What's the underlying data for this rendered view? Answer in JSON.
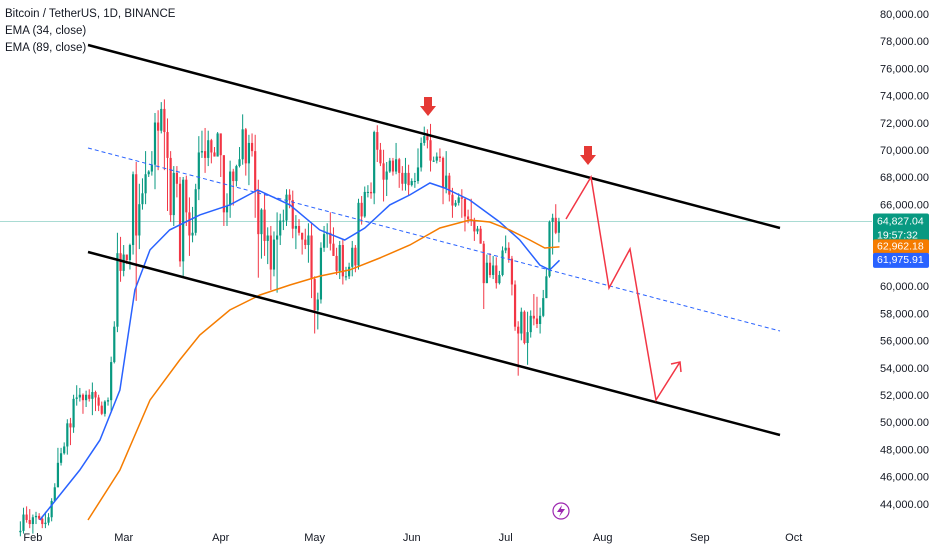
{
  "chart_data": {
    "type": "candlestick",
    "title": "Bitcoin / TetherUS, 1D, BINANCE",
    "up_color": "#089981",
    "down_color": "#f23645",
    "xlim": [
      -6.5,
      272
    ],
    "ylim": [
      42898,
      81102
    ],
    "grid": false,
    "yticks": [
      {
        "value": 44000,
        "label": "44,000.00"
      },
      {
        "value": 46000,
        "label": "46,000.00"
      },
      {
        "value": 48000,
        "label": "48,000.00"
      },
      {
        "value": 50000,
        "label": "50,000.00"
      },
      {
        "value": 52000,
        "label": "52,000.00"
      },
      {
        "value": 54000,
        "label": "54,000.00"
      },
      {
        "value": 56000,
        "label": "56,000.00"
      },
      {
        "value": 58000,
        "label": "58,000.00"
      },
      {
        "value": 60000,
        "label": "60,000.00"
      },
      {
        "value": 62000,
        "label": "62,000.00"
      },
      {
        "value": 64000,
        "label": "64,000.00"
      },
      {
        "value": 66000,
        "label": "66,000.00"
      },
      {
        "value": 68000,
        "label": "68,000.00"
      },
      {
        "value": 70000,
        "label": "70,000.00"
      },
      {
        "value": 72000,
        "label": "72,000.00"
      },
      {
        "value": 74000,
        "label": "74,000.00"
      },
      {
        "value": 76000,
        "label": "76,000.00"
      },
      {
        "value": 78000,
        "label": "78,000.00"
      },
      {
        "value": 80000,
        "label": "80,000.00"
      }
    ],
    "xticks": [
      {
        "value": 4,
        "label": "Feb"
      },
      {
        "value": 33,
        "label": "Mar"
      },
      {
        "value": 64,
        "label": "Apr"
      },
      {
        "value": 94,
        "label": "May"
      },
      {
        "value": 125,
        "label": "Jun"
      },
      {
        "value": 155,
        "label": "Jul"
      },
      {
        "value": 186,
        "label": "Aug"
      },
      {
        "value": 217,
        "label": "Sep"
      },
      {
        "value": 247,
        "label": "Oct"
      }
    ],
    "candles": [
      [
        42000,
        42800,
        41700,
        42100
      ],
      [
        42100,
        43800,
        41900,
        43300
      ],
      [
        43300,
        43900,
        42700,
        42900
      ],
      [
        42900,
        43700,
        42300,
        42600
      ],
      [
        42600,
        43300,
        41900,
        43100
      ],
      [
        43100,
        43500,
        42600,
        43200
      ],
      [
        43200,
        43400,
        42900,
        43000
      ],
      [
        43000,
        43200,
        42300,
        42600
      ],
      [
        42600,
        43500,
        42300,
        42700
      ],
      [
        42700,
        43400,
        42500,
        43100
      ],
      [
        43100,
        44500,
        42800,
        44300
      ],
      [
        44300,
        45600,
        44300,
        45300
      ],
      [
        45300,
        48200,
        45300,
        47100
      ],
      [
        47100,
        48200,
        46900,
        47800
      ],
      [
        47800,
        48600,
        47700,
        48300
      ],
      [
        48300,
        50300,
        47700,
        50000
      ],
      [
        50000,
        50400,
        48400,
        49700
      ],
      [
        49700,
        52100,
        49300,
        51800
      ],
      [
        51800,
        52800,
        51300,
        51900
      ],
      [
        51900,
        52600,
        51600,
        52100
      ],
      [
        52100,
        52200,
        50700,
        51700
      ],
      [
        51700,
        52400,
        51200,
        52100
      ],
      [
        52100,
        52500,
        51600,
        51800
      ],
      [
        51800,
        53000,
        50600,
        52300
      ],
      [
        52300,
        52400,
        50900,
        51900
      ],
      [
        51900,
        52100,
        50900,
        51300
      ],
      [
        51300,
        51600,
        50600,
        50700
      ],
      [
        50700,
        51700,
        50500,
        51600
      ],
      [
        51600,
        51900,
        51300,
        51700
      ],
      [
        51700,
        54900,
        50900,
        54500
      ],
      [
        54500,
        57500,
        54400,
        57100
      ],
      [
        57100,
        64000,
        56700,
        62500
      ],
      [
        62500,
        63700,
        60400,
        61200
      ],
      [
        61200,
        63100,
        60800,
        62400
      ],
      [
        62400,
        62400,
        61700,
        62000
      ],
      [
        62000,
        63200,
        61300,
        63100
      ],
      [
        63100,
        68500,
        62400,
        68300
      ],
      [
        68300,
        69200,
        59000,
        63800
      ],
      [
        63800,
        67600,
        62800,
        66100
      ],
      [
        66100,
        68000,
        65700,
        66900
      ],
      [
        66900,
        70000,
        66100,
        68300
      ],
      [
        68300,
        68600,
        68100,
        68500
      ],
      [
        68500,
        70000,
        68200,
        69000
      ],
      [
        69000,
        72800,
        67200,
        72100
      ],
      [
        72100,
        73000,
        68600,
        71500
      ],
      [
        71500,
        73600,
        71300,
        73100
      ],
      [
        73100,
        73800,
        68600,
        71400
      ],
      [
        71400,
        72400,
        65600,
        69500
      ],
      [
        69500,
        70000,
        64800,
        65300
      ],
      [
        65300,
        68900,
        64500,
        68400
      ],
      [
        68400,
        68900,
        66600,
        67600
      ],
      [
        67600,
        68100,
        61500,
        61900
      ],
      [
        61900,
        68100,
        60800,
        67900
      ],
      [
        67900,
        68200,
        64500,
        65500
      ],
      [
        65500,
        66600,
        62300,
        63800
      ],
      [
        63800,
        65900,
        63300,
        64000
      ],
      [
        64000,
        67600,
        63800,
        67200
      ],
      [
        67200,
        71100,
        66400,
        69900
      ],
      [
        69900,
        71500,
        69500,
        70000
      ],
      [
        70000,
        71700,
        68400,
        69500
      ],
      [
        69500,
        71500,
        68900,
        70800
      ],
      [
        70800,
        70900,
        69100,
        69900
      ],
      [
        69900,
        70300,
        69600,
        69600
      ],
      [
        69600,
        71400,
        69600,
        71300
      ],
      [
        71300,
        71300,
        68100,
        69700
      ],
      [
        69700,
        69700,
        64500,
        65500
      ],
      [
        65500,
        66900,
        64500,
        66000
      ],
      [
        66000,
        69300,
        65100,
        68500
      ],
      [
        68500,
        68700,
        66000,
        67800
      ],
      [
        67800,
        69000,
        67400,
        68900
      ],
      [
        68900,
        70300,
        68800,
        69400
      ],
      [
        69400,
        72700,
        69000,
        71600
      ],
      [
        71600,
        71700,
        68200,
        69100
      ],
      [
        69100,
        71200,
        67500,
        70600
      ],
      [
        70600,
        71300,
        69600,
        70000
      ],
      [
        70000,
        71200,
        65100,
        67100
      ],
      [
        67100,
        67900,
        60700,
        63900
      ],
      [
        63900,
        65800,
        62100,
        65700
      ],
      [
        65700,
        66900,
        62300,
        63400
      ],
      [
        63400,
        64400,
        61700,
        63800
      ],
      [
        63800,
        64500,
        59800,
        61300
      ],
      [
        61300,
        64100,
        60800,
        63500
      ],
      [
        63500,
        65500,
        59600,
        63800
      ],
      [
        63800,
        65400,
        63100,
        64900
      ],
      [
        64900,
        65700,
        64200,
        64900
      ],
      [
        64900,
        67200,
        64500,
        66800
      ],
      [
        66800,
        67200,
        65800,
        66400
      ],
      [
        66400,
        67100,
        63600,
        64300
      ],
      [
        64300,
        65300,
        62800,
        64500
      ],
      [
        64500,
        65000,
        63800,
        64000
      ],
      [
        64000,
        64000,
        62400,
        63500
      ],
      [
        63500,
        64300,
        62800,
        63100
      ],
      [
        63100,
        64700,
        61800,
        63800
      ],
      [
        63800,
        64700,
        59200,
        60600
      ],
      [
        60600,
        60800,
        56600,
        58300
      ],
      [
        58300,
        59600,
        56900,
        59100
      ],
      [
        59100,
        63300,
        58800,
        62900
      ],
      [
        62900,
        64500,
        62600,
        63900
      ],
      [
        63900,
        64700,
        62900,
        64000
      ],
      [
        64000,
        65500,
        62700,
        63200
      ],
      [
        63200,
        64400,
        62300,
        62300
      ],
      [
        62300,
        62900,
        60900,
        61200
      ],
      [
        61200,
        63400,
        60600,
        63100
      ],
      [
        63100,
        63500,
        60200,
        60800
      ],
      [
        60800,
        61500,
        60500,
        60800
      ],
      [
        60800,
        61800,
        60600,
        61500
      ],
      [
        61500,
        63400,
        60800,
        62900
      ],
      [
        62900,
        63100,
        61100,
        61600
      ],
      [
        61600,
        66500,
        61300,
        66200
      ],
      [
        66200,
        66700,
        64600,
        65200
      ],
      [
        65200,
        67400,
        65100,
        67000
      ],
      [
        67000,
        67500,
        66600,
        67000
      ],
      [
        67000,
        67700,
        66500,
        66900
      ],
      [
        66900,
        71500,
        66100,
        71400
      ],
      [
        71400,
        71900,
        69200,
        70100
      ],
      [
        70100,
        70600,
        68900,
        69100
      ],
      [
        69100,
        70100,
        66300,
        67900
      ],
      [
        67900,
        69200,
        66700,
        68500
      ],
      [
        68500,
        69500,
        68400,
        69300
      ],
      [
        69300,
        69500,
        68200,
        68500
      ],
      [
        68500,
        70600,
        68300,
        69400
      ],
      [
        69400,
        69500,
        67300,
        68400
      ],
      [
        68400,
        68900,
        67100,
        67600
      ],
      [
        67600,
        69500,
        67100,
        68400
      ],
      [
        68400,
        69000,
        66700,
        67500
      ],
      [
        67500,
        68000,
        67400,
        67800
      ],
      [
        67800,
        68400,
        67300,
        67800
      ],
      [
        67800,
        70200,
        67600,
        68800
      ],
      [
        68800,
        71000,
        68500,
        70600
      ],
      [
        70600,
        71800,
        70400,
        71100
      ],
      [
        71100,
        71600,
        70200,
        70800
      ],
      [
        70800,
        72000,
        68500,
        69300
      ],
      [
        69300,
        69600,
        69200,
        69300
      ],
      [
        69300,
        69900,
        69100,
        69600
      ],
      [
        69600,
        70200,
        69200,
        69500
      ],
      [
        69500,
        69600,
        66100,
        67300
      ],
      [
        67300,
        70000,
        66900,
        68200
      ],
      [
        68200,
        68400,
        66300,
        66800
      ],
      [
        66800,
        67300,
        65100,
        66000
      ],
      [
        66000,
        66400,
        65900,
        66200
      ],
      [
        66200,
        66900,
        66000,
        66600
      ],
      [
        66600,
        67200,
        65100,
        66500
      ],
      [
        66500,
        66500,
        64100,
        65200
      ],
      [
        65200,
        65700,
        64700,
        65000
      ],
      [
        65000,
        66500,
        64500,
        64900
      ],
      [
        64900,
        65100,
        63400,
        64100
      ],
      [
        64100,
        64500,
        63900,
        64300
      ],
      [
        64300,
        64500,
        63200,
        63200
      ],
      [
        63200,
        63400,
        58400,
        60300
      ],
      [
        60300,
        62400,
        60300,
        61800
      ],
      [
        61800,
        62500,
        60700,
        60900
      ],
      [
        60900,
        62300,
        60600,
        61600
      ],
      [
        61600,
        62200,
        59900,
        60300
      ],
      [
        60300,
        61200,
        60200,
        60900
      ],
      [
        60900,
        63000,
        60800,
        62700
      ],
      [
        62700,
        63800,
        62500,
        62900
      ],
      [
        62900,
        63300,
        61800,
        62100
      ],
      [
        62100,
        62300,
        59400,
        60200
      ],
      [
        60200,
        60500,
        56800,
        57100
      ],
      [
        57100,
        57500,
        53500,
        56600
      ],
      [
        56600,
        58500,
        56100,
        58200
      ],
      [
        58200,
        58300,
        55800,
        55900
      ],
      [
        55900,
        58200,
        54300,
        56700
      ],
      [
        56700,
        58300,
        56300,
        57900
      ],
      [
        57900,
        59500,
        57200,
        57700
      ],
      [
        57700,
        59300,
        57000,
        57300
      ],
      [
        57300,
        58500,
        56600,
        57900
      ],
      [
        57900,
        59800,
        57800,
        59200
      ],
      [
        59200,
        61400,
        59200,
        60800
      ],
      [
        60800,
        64900,
        60700,
        64800
      ],
      [
        64800,
        65400,
        62400,
        65100
      ],
      [
        65100,
        66100,
        63900,
        64000
      ],
      [
        64000,
        65100,
        63300,
        64827.04
      ]
    ],
    "series": [
      {
        "name": "EMA (34, close)",
        "color": "#2962ff",
        "x": [
          6.2,
          19.0,
          25.4,
          31.8,
          36.6,
          41.4,
          47.7,
          57.3,
          66.9,
          75.8,
          86.1,
          95.6,
          103.6,
          110.0,
          118.0,
          124.4,
          130.8,
          135.5,
          143.5,
          153.1,
          159.5,
          165.9,
          169.1,
          172.2
        ],
        "values": [
          42900,
          46570,
          48770,
          52450,
          59800,
          62740,
          64210,
          65310,
          66050,
          67140,
          66050,
          64210,
          63470,
          64350,
          66050,
          66780,
          67660,
          67290,
          66410,
          64790,
          63470,
          61630,
          61270,
          61976
        ]
      },
      {
        "name": "EMA (89, close)",
        "color": "#f57c00",
        "x": [
          21.6,
          31.8,
          41.4,
          50.9,
          57.3,
          66.9,
          76.5,
          86.1,
          95.6,
          105.2,
          114.8,
          124.4,
          134.0,
          143.5,
          149.9,
          156.3,
          162.7,
          167.5,
          172.2
        ],
        "values": [
          42900,
          46570,
          51710,
          54650,
          56490,
          58330,
          59430,
          60160,
          60820,
          61270,
          62150,
          63100,
          64350,
          64940,
          64790,
          64210,
          63470,
          62880,
          62962
        ]
      }
    ],
    "price_labels": [
      {
        "value": 64827.04,
        "label": "64,827.04",
        "color": "#089981"
      },
      {
        "value": 62962.18,
        "label": "62,962.18",
        "color": "#f57c00"
      },
      {
        "value": 61975.91,
        "label": "61,975.91",
        "color": "#2962ff"
      }
    ],
    "countdown": "19:57:32"
  }
}
